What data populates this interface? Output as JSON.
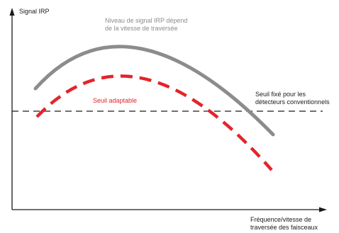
{
  "axes": {
    "y_label": "Signal IRP",
    "x_label_line1": "Fréquence/vitesse de",
    "x_label_line2": "traversée des faisceaux"
  },
  "curves": {
    "signal_label_line1": "Niveau de signal IRP dépend",
    "signal_label_line2": "de la vitesse de traversée",
    "adaptive_label": "Seuil adaptable",
    "fixed_label_line1": "Seuil fixé pour les",
    "fixed_label_line2": "détecteurs conventionnels"
  },
  "colors": {
    "signal_curve": "#8c8c8c",
    "adaptive_curve": "#e3242b",
    "axis": "#1a1a1a",
    "fixed_threshold": "#1a1a1a",
    "signal_text": "#8c8c8c",
    "adaptive_text": "#e3242b",
    "text": "#1a1a1a"
  }
}
